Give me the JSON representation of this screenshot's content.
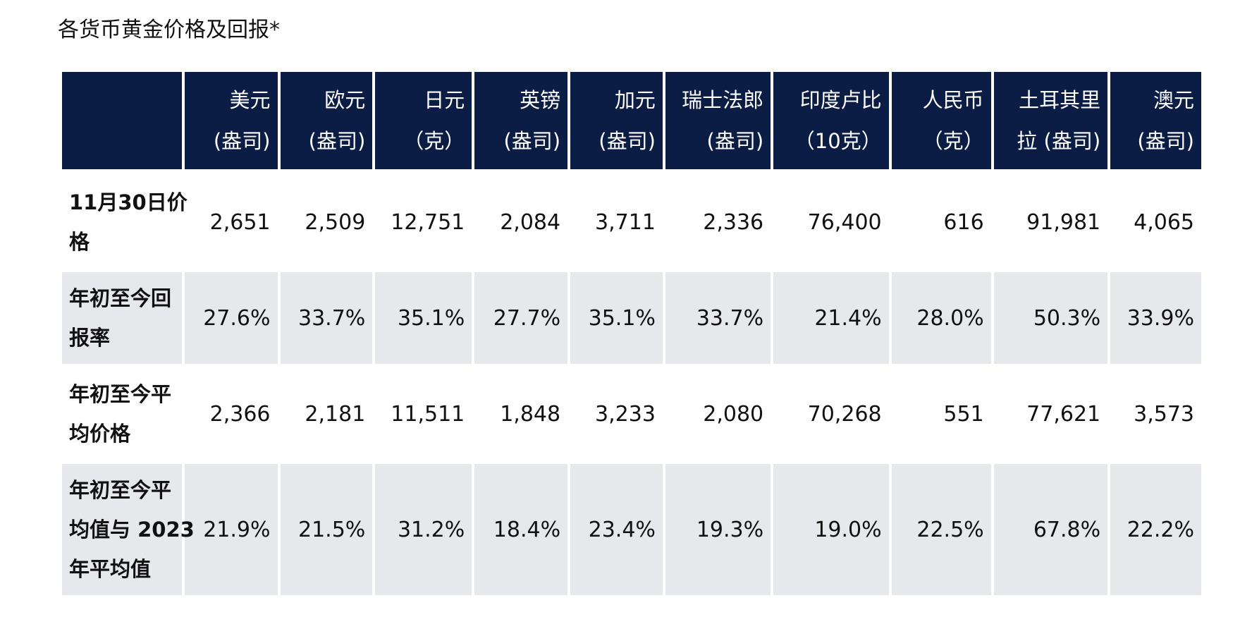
{
  "chart_data": {
    "type": "table",
    "title": "各货币黄金价格及回报*",
    "columns": [
      [
        "美元",
        "(盎司)"
      ],
      [
        "欧元",
        "(盎司)"
      ],
      [
        "日元",
        "（克）"
      ],
      [
        "英镑",
        "(盎司)"
      ],
      [
        "加元",
        "(盎司)"
      ],
      [
        "瑞士法郎",
        "(盎司)"
      ],
      [
        "印度卢比",
        "（10克）"
      ],
      [
        "人民币",
        "（克）"
      ],
      [
        "土耳其里",
        "拉 (盎司)"
      ],
      [
        "澳元",
        "(盎司)"
      ]
    ],
    "rows": [
      {
        "label": [
          "11月30日价",
          "格"
        ],
        "values": [
          "2,651",
          "2,509",
          "12,751",
          "2,084",
          "3,711",
          "2,336",
          "76,400",
          "616",
          "91,981",
          "4,065"
        ]
      },
      {
        "label": [
          "年初至今回",
          "报率"
        ],
        "values": [
          "27.6%",
          "33.7%",
          "35.1%",
          "27.7%",
          "35.1%",
          "33.7%",
          "21.4%",
          "28.0%",
          "50.3%",
          "33.9%"
        ]
      },
      {
        "label": [
          "年初至今平",
          "均价格"
        ],
        "values": [
          "2,366",
          "2,181",
          "11,511",
          "1,848",
          "3,233",
          "2,080",
          "70,268",
          "551",
          "77,621",
          "3,573"
        ]
      },
      {
        "label": [
          "年初至今平",
          "均值与 2023",
          "年平均值"
        ],
        "values": [
          "21.9%",
          "21.5%",
          "31.2%",
          "18.4%",
          "23.4%",
          "19.3%",
          "19.0%",
          "22.5%",
          "67.8%",
          "22.2%"
        ]
      }
    ]
  },
  "colors": {
    "header_bg": "#0b1c45",
    "header_text": "#ffffff",
    "band_bg": "#e7e8ec"
  }
}
